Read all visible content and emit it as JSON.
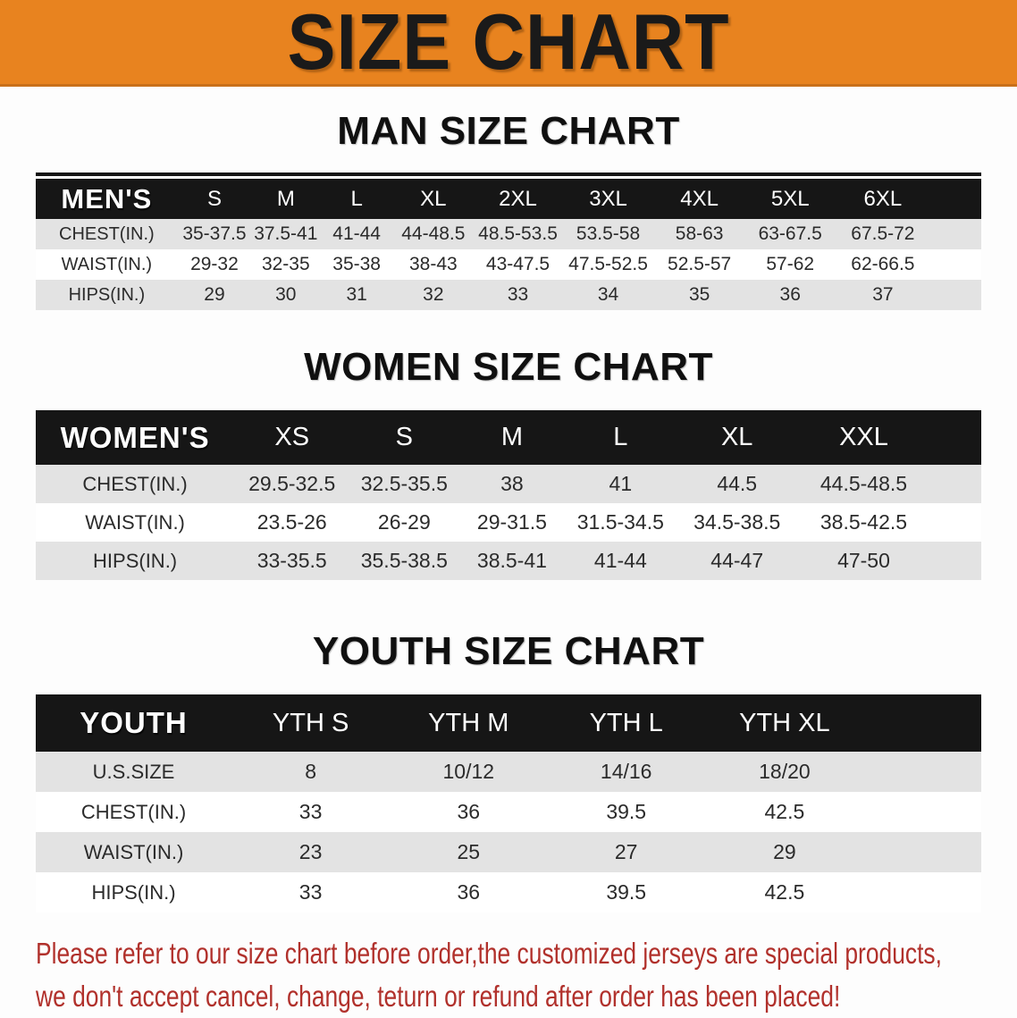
{
  "banner": {
    "title": "SIZE CHART"
  },
  "colors": {
    "banner_bg": "#E8831F",
    "banner_text": "#1A1A1A",
    "table_header_bg": "#161616",
    "table_header_text": "#FFFFFF",
    "row_stripe": "#E3E3E3",
    "body_text": "#2B2B2B",
    "disclaimer_text": "#B1312C"
  },
  "sections": [
    {
      "heading": "MAN SIZE CHART",
      "table": {
        "label": "MEN'S",
        "columns": [
          "S",
          "M",
          "L",
          "XL",
          "2XL",
          "3XL",
          "4XL",
          "5XL",
          "6XL"
        ],
        "rows": [
          {
            "label": "CHEST(IN.)",
            "values": [
              "35-37.5",
              "37.5-41",
              "41-44",
              "44-48.5",
              "48.5-53.5",
              "53.5-58",
              "58-63",
              "63-67.5",
              "67.5-72"
            ]
          },
          {
            "label": "WAIST(IN.)",
            "values": [
              "29-32",
              "32-35",
              "35-38",
              "38-43",
              "43-47.5",
              "47.5-52.5",
              "52.5-57",
              "57-62",
              "62-66.5"
            ]
          },
          {
            "label": "HIPS(IN.)",
            "values": [
              "29",
              "30",
              "31",
              "32",
              "33",
              "34",
              "35",
              "36",
              "37"
            ]
          }
        ]
      }
    },
    {
      "heading": "WOMEN SIZE CHART",
      "table": {
        "label": "WOMEN'S",
        "columns": [
          "XS",
          "S",
          "M",
          "L",
          "XL",
          "XXL"
        ],
        "rows": [
          {
            "label": "CHEST(IN.)",
            "values": [
              "29.5-32.5",
              "32.5-35.5",
              "38",
              "41",
              "44.5",
              "44.5-48.5"
            ]
          },
          {
            "label": "WAIST(IN.)",
            "values": [
              "23.5-26",
              "26-29",
              "29-31.5",
              "31.5-34.5",
              "34.5-38.5",
              "38.5-42.5"
            ]
          },
          {
            "label": "HIPS(IN.)",
            "values": [
              "33-35.5",
              "35.5-38.5",
              "38.5-41",
              "41-44",
              "44-47",
              "47-50"
            ]
          }
        ]
      }
    },
    {
      "heading": "YOUTH SIZE CHART",
      "table": {
        "label": "YOUTH",
        "columns": [
          "YTH S",
          "YTH M",
          "YTH L",
          "YTH XL"
        ],
        "rows": [
          {
            "label": "U.S.SIZE",
            "values": [
              "8",
              "10/12",
              "14/16",
              "18/20"
            ]
          },
          {
            "label": "CHEST(IN.)",
            "values": [
              "33",
              "36",
              "39.5",
              "42.5"
            ]
          },
          {
            "label": "WAIST(IN.)",
            "values": [
              "23",
              "25",
              "27",
              "29"
            ]
          },
          {
            "label": "HIPS(IN.)",
            "values": [
              "33",
              "36",
              "39.5",
              "42.5"
            ]
          }
        ]
      }
    }
  ],
  "footer": {
    "lines": [
      "Please refer to our size chart before order,the customized jerseys are special products,",
      "we don't accept cancel, change, teturn or refund after order has been placed!"
    ]
  }
}
